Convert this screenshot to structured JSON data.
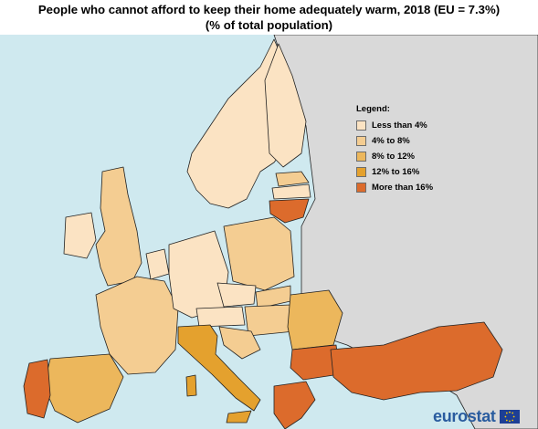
{
  "title_line1": "People who cannot afford to keep their home adequately warm, 2018 (EU = 7.3%)",
  "title_line2": "(% of total population)",
  "legend": {
    "title": "Legend:",
    "items": [
      {
        "label": "Less than 4%",
        "color": "#fbe3c3"
      },
      {
        "label": "4% to 8%",
        "color": "#f4cd92"
      },
      {
        "label": "8% to 12%",
        "color": "#ecb75c"
      },
      {
        "label": "12% to 16%",
        "color": "#e4a12e"
      },
      {
        "label": "More than 16%",
        "color": "#dc6b2c"
      }
    ]
  },
  "colors": {
    "sea": "#cfe9ef",
    "non_eu_land": "#d9d9d9",
    "border": "#222222",
    "brand_blue": "#2a5c9f"
  },
  "brand": {
    "name": "eurostat",
    "flag_icon": "eu-flag-icon"
  }
}
